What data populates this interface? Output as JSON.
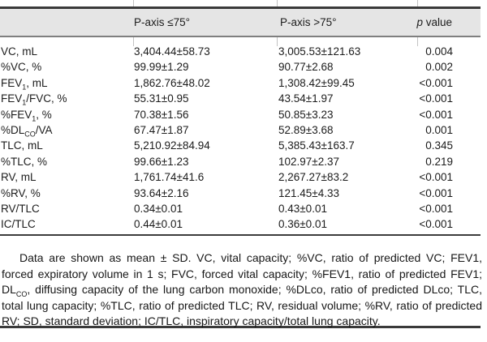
{
  "colors": {
    "header_band": "#e5e5e5",
    "rule": "#3a3a3a"
  },
  "table": {
    "header": {
      "col_empty": "",
      "col_le75": "P-axis ≤75°",
      "col_gt75": "P-axis >75°",
      "p_italic": "p",
      "p_rest": " value"
    },
    "rows": [
      {
        "label": [
          {
            "t": "VC, mL"
          }
        ],
        "le75": "3,404.44±58.73",
        "gt75": "3,005.53±121.63",
        "p": "0.004"
      },
      {
        "label": [
          {
            "t": "%VC, %"
          }
        ],
        "le75": "99.99±1.29",
        "gt75": "90.77±2.68",
        "p": "0.002"
      },
      {
        "label": [
          {
            "t": "FEV"
          },
          {
            "t": "1",
            "sub": true
          },
          {
            "t": ", mL"
          }
        ],
        "le75": "1,862.76±48.02",
        "gt75": "1,308.42±99.45",
        "p": "<0.001"
      },
      {
        "label": [
          {
            "t": "FEV"
          },
          {
            "t": "1",
            "sub": true
          },
          {
            "t": "/FVC, %"
          }
        ],
        "le75": "55.31±0.95",
        "gt75": "43.54±1.97",
        "p": "<0.001"
      },
      {
        "label": [
          {
            "t": "%FEV"
          },
          {
            "t": "1",
            "sub": true
          },
          {
            "t": ", %"
          }
        ],
        "le75": "70.38±1.56",
        "gt75": "50.85±3.23",
        "p": "<0.001"
      },
      {
        "label": [
          {
            "t": "%DL"
          },
          {
            "t": "CO",
            "sub": true
          },
          {
            "t": "/VA"
          }
        ],
        "le75": "67.47±1.87",
        "gt75": "52.89±3.68",
        "p": "0.001"
      },
      {
        "label": [
          {
            "t": "TLC, mL"
          }
        ],
        "le75": "5,210.92±84.94",
        "gt75": "5,385.43±163.7",
        "p": "0.345"
      },
      {
        "label": [
          {
            "t": "%TLC, %"
          }
        ],
        "le75": "99.66±1.23",
        "gt75": "102.97±2.37",
        "p": "0.219"
      },
      {
        "label": [
          {
            "t": "RV, mL"
          }
        ],
        "le75": "1,761.74±41.6",
        "gt75": "2,267.27±83.2",
        "p": "<0.001"
      },
      {
        "label": [
          {
            "t": "%RV, %"
          }
        ],
        "le75": "93.64±2.16",
        "gt75": "121.45±4.33",
        "p": "<0.001"
      },
      {
        "label": [
          {
            "t": "RV/TLC"
          }
        ],
        "le75": "0.34±0.01",
        "gt75": "0.43±0.01",
        "p": "<0.001"
      },
      {
        "label": [
          {
            "t": "IC/TLC"
          }
        ],
        "le75": "0.44±0.01",
        "gt75": "0.36±0.01",
        "p": "<0.001"
      }
    ]
  },
  "footnote": {
    "parts": [
      {
        "t": "Data are shown as mean ± SD. VC, vital capacity; %VC, ratio of predicted VC; FEV1, forced expiratory volume in 1 s; FVC, forced vital capacity; %FEV1, ratio of predicted FEV1; DL"
      },
      {
        "t": "CO",
        "sub": true
      },
      {
        "t": ", diffusing capacity of the lung carbon monoxide; %DLco, ratio of predicted DLco; TLC, total lung capacity; %TLC, ratio of predicted TLC; RV, residual volume; %RV, ratio of predicted RV; SD, standard deviation; IC/TLC, inspiratory capacity/total lung capacity."
      }
    ]
  }
}
